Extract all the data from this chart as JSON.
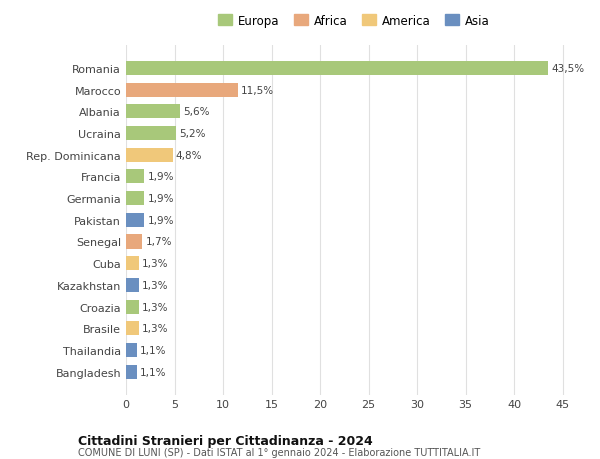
{
  "countries": [
    "Romania",
    "Marocco",
    "Albania",
    "Ucraina",
    "Rep. Dominicana",
    "Francia",
    "Germania",
    "Pakistan",
    "Senegal",
    "Cuba",
    "Kazakhstan",
    "Croazia",
    "Brasile",
    "Thailandia",
    "Bangladesh"
  ],
  "values": [
    43.5,
    11.5,
    5.6,
    5.2,
    4.8,
    1.9,
    1.9,
    1.9,
    1.7,
    1.3,
    1.3,
    1.3,
    1.3,
    1.1,
    1.1
  ],
  "labels": [
    "43,5%",
    "11,5%",
    "5,6%",
    "5,2%",
    "4,8%",
    "1,9%",
    "1,9%",
    "1,9%",
    "1,7%",
    "1,3%",
    "1,3%",
    "1,3%",
    "1,3%",
    "1,1%",
    "1,1%"
  ],
  "colors": [
    "#a8c87a",
    "#e8a87c",
    "#a8c87a",
    "#a8c87a",
    "#f0c87a",
    "#a8c87a",
    "#a8c87a",
    "#6a8fc0",
    "#e8a87c",
    "#f0c87a",
    "#6a8fc0",
    "#a8c87a",
    "#f0c87a",
    "#6a8fc0",
    "#6a8fc0"
  ],
  "legend_labels": [
    "Europa",
    "Africa",
    "America",
    "Asia"
  ],
  "legend_colors": [
    "#a8c87a",
    "#e8a87c",
    "#f0c87a",
    "#6a8fc0"
  ],
  "title": "Cittadini Stranieri per Cittadinanza - 2024",
  "subtitle": "COMUNE DI LUNI (SP) - Dati ISTAT al 1° gennaio 2024 - Elaborazione TUTTITALIA.IT",
  "xlim": [
    0,
    47
  ],
  "xticks": [
    0,
    5,
    10,
    15,
    20,
    25,
    30,
    35,
    40,
    45
  ],
  "background_color": "#ffffff",
  "grid_color": "#e0e0e0"
}
